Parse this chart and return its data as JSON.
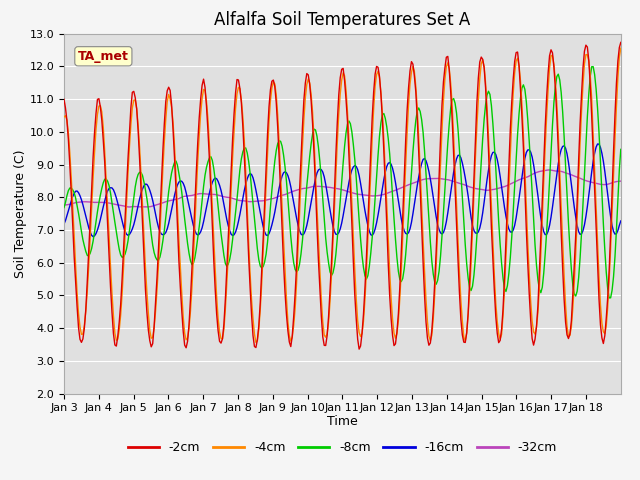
{
  "title": "Alfalfa Soil Temperatures Set A",
  "xlabel": "Time",
  "ylabel": "Soil Temperature (C)",
  "ylim": [
    2.0,
    13.0
  ],
  "yticks": [
    2.0,
    3.0,
    4.0,
    5.0,
    6.0,
    7.0,
    8.0,
    9.0,
    10.0,
    11.0,
    12.0,
    13.0
  ],
  "xtick_labels": [
    "Jan 3",
    "Jan 4",
    "Jan 5",
    "Jan 6",
    "Jan 7",
    "Jan 8",
    "Jan 9",
    "Jan 10",
    "Jan 11",
    "Jan 12",
    "Jan 13",
    "Jan 14",
    "Jan 15",
    "Jan 16",
    "Jan 17",
    "Jan 18"
  ],
  "colors": {
    "-2cm": "#dd0000",
    "-4cm": "#ff8800",
    "-8cm": "#00cc00",
    "-16cm": "#0000dd",
    "-32cm": "#bb44bb"
  },
  "legend_labels": [
    "-2cm",
    "-4cm",
    "-8cm",
    "-16cm",
    "-32cm"
  ],
  "annotation_text": "TA_met",
  "annotation_color": "#aa0000",
  "annotation_bg": "#ffffcc",
  "background_color": "#e0e0e0",
  "grid_color": "#ffffff",
  "title_fontsize": 12,
  "axis_fontsize": 9,
  "tick_fontsize": 8,
  "n_days": 16,
  "n_pts": 384
}
